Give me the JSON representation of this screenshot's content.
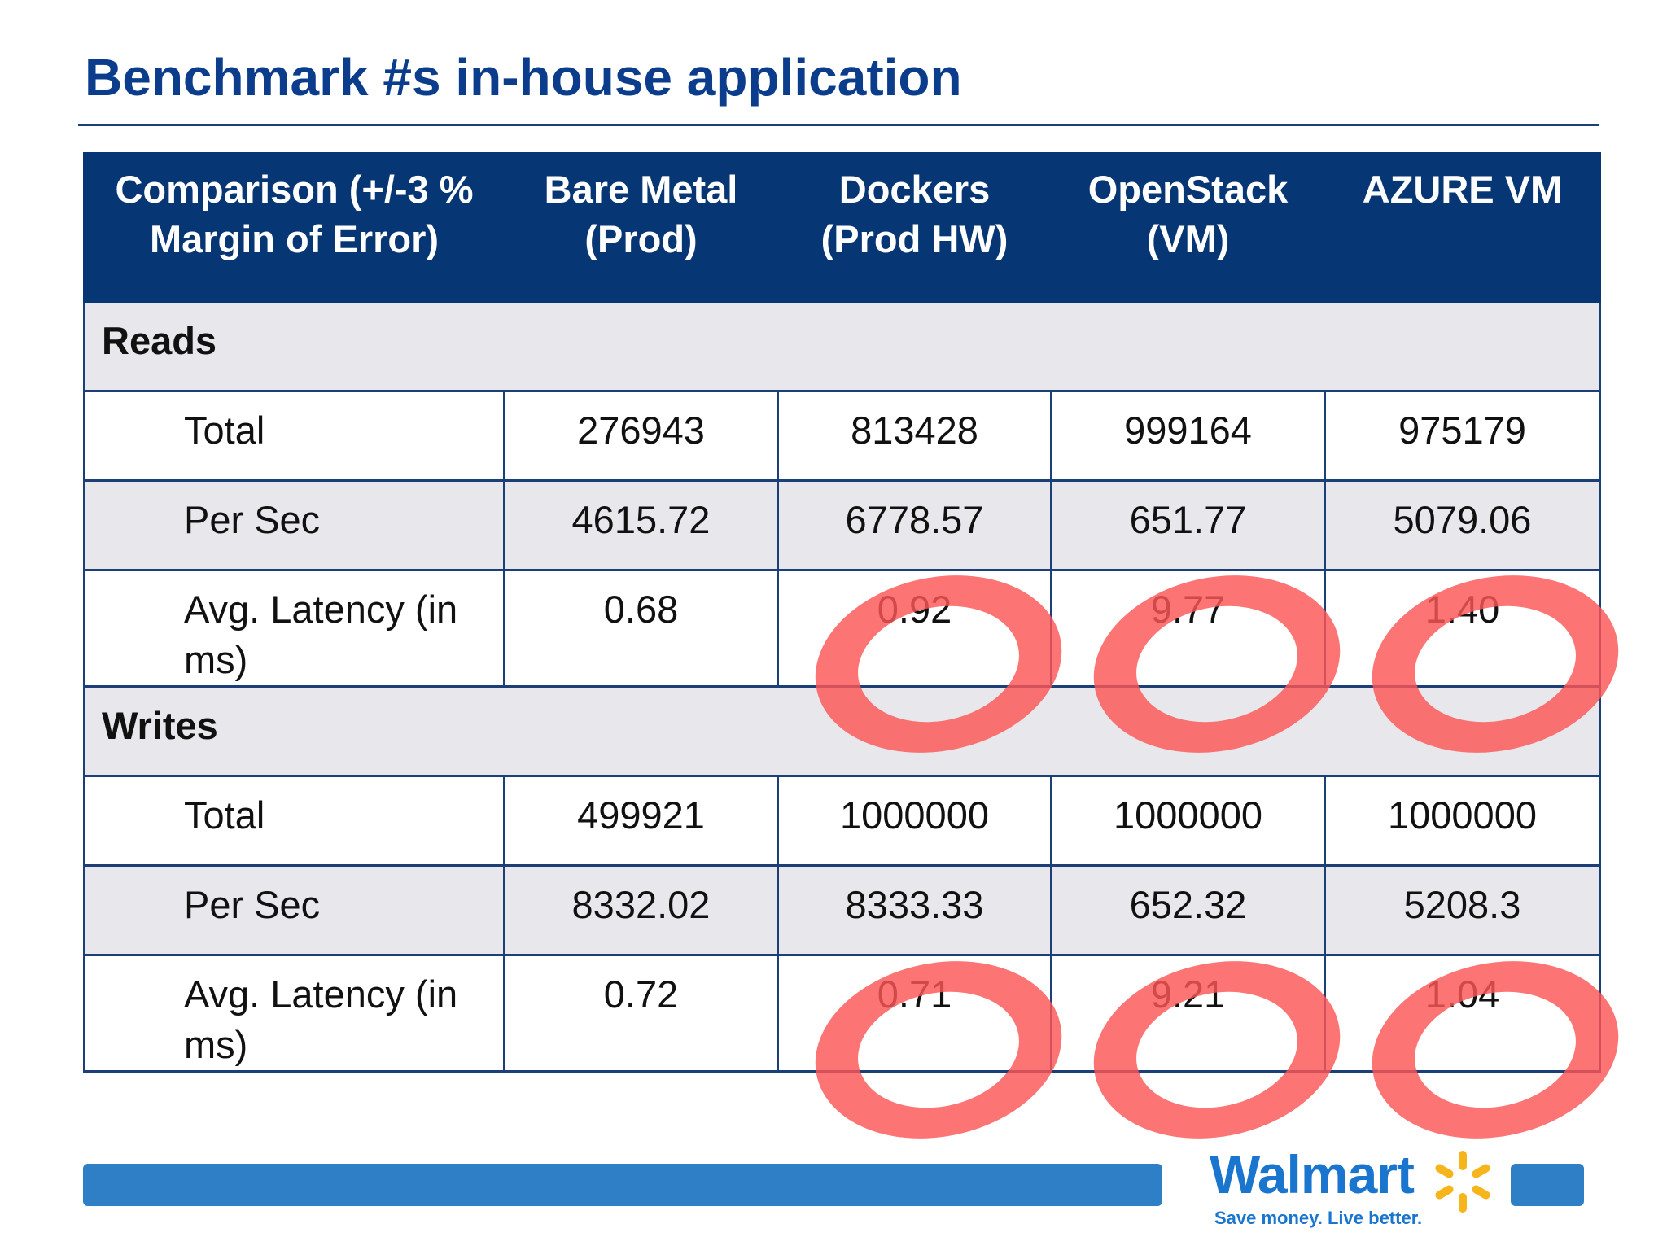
{
  "slide": {
    "title": "Benchmark #s in-house application"
  },
  "table": {
    "headers": [
      "Comparison (+/-3 % Margin of Error)",
      "Bare Metal (Prod)",
      "Dockers (Prod HW)",
      "OpenStack (VM)",
      "AZURE VM"
    ],
    "reads": {
      "label": "Reads",
      "rows": [
        {
          "metric": "Total",
          "values": [
            "276943",
            "813428",
            "999164",
            "975179"
          ]
        },
        {
          "metric": "Per Sec",
          "values": [
            "4615.72",
            "6778.57",
            "651.77",
            "5079.06"
          ]
        },
        {
          "metric": "Avg. Latency (in ms)",
          "values": [
            "0.68",
            "0.92",
            "9.77",
            "1.40"
          ]
        }
      ]
    },
    "writes": {
      "label": "Writes",
      "rows": [
        {
          "metric": "Total",
          "values": [
            "499921",
            "1000000",
            "1000000",
            "1000000"
          ]
        },
        {
          "metric": "Per Sec",
          "values": [
            "8332.02",
            "8333.33",
            "652.32",
            "5208.3"
          ]
        },
        {
          "metric": "Avg. Latency (in ms)",
          "values": [
            "0.72",
            "0.71",
            "9.21",
            "1.04"
          ]
        }
      ]
    }
  },
  "annotations": {
    "circle_color": "#fc5656",
    "circled_cells": [
      "0.92",
      "9.77",
      "1.40",
      "0.71",
      "9.21",
      "1.04"
    ]
  },
  "branding": {
    "logo_text": "Walmart",
    "tagline": "Save money. Live better.",
    "logo_color": "#1a75cf",
    "spark_color": "#f7b51c",
    "bar_color": "#2f7fc6",
    "header_color": "#073674",
    "title_color": "#0b3d8c"
  }
}
